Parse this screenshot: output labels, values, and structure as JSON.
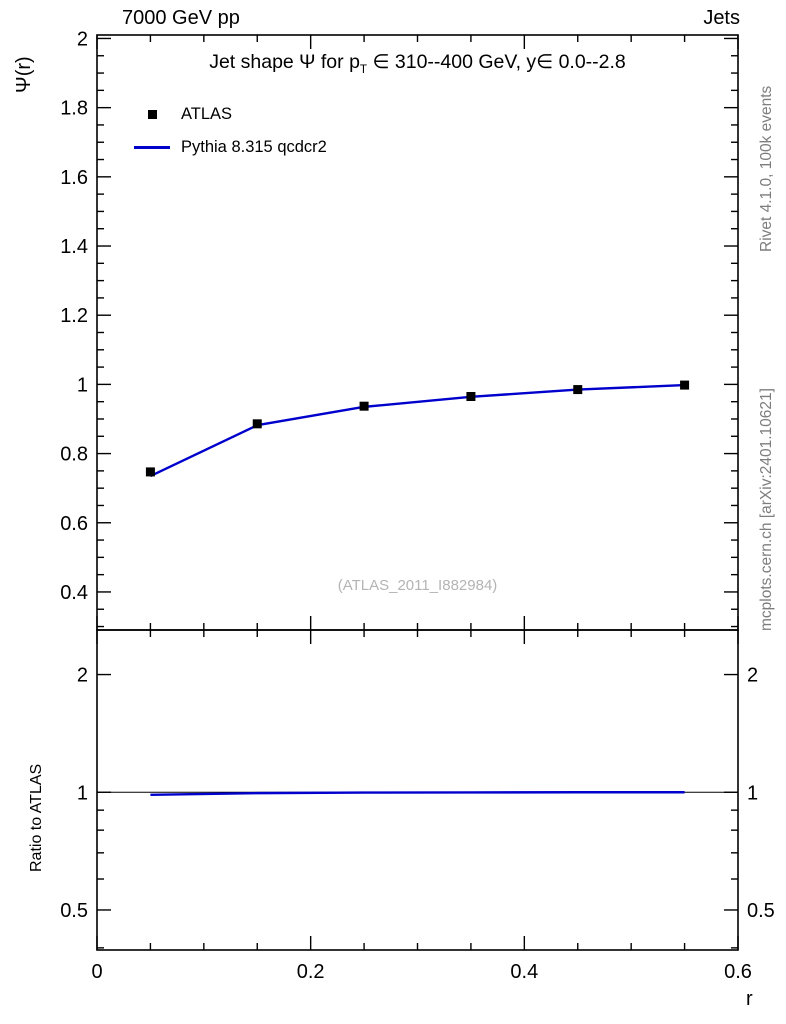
{
  "header": {
    "left": "7000 GeV pp",
    "right": "Jets"
  },
  "side_notes": {
    "top_right": "Rivet 4.1.0,  100k events",
    "bottom_right": "mcplots.cern.ch [arXiv:2401.10621]"
  },
  "watermark": "(ATLAS_2011_I882984)",
  "chart_data": {
    "type": "line",
    "title": "Jet shape Ψ for pT ∈ 310--400 GeV, y∈ 0.0--2.8",
    "title_parts": {
      "pre": "Jet shape Ψ for p",
      "sub": "T",
      "post": " ∈ 310--400 GeV, y∈ 0.0--2.8"
    },
    "xlabel": "r",
    "ylabel": "Ψ(r)",
    "xlim": [
      0,
      0.6
    ],
    "ylim": [
      0.29,
      2.01
    ],
    "xticks": [
      0,
      0.2,
      0.4,
      0.6
    ],
    "yticks": [
      0.4,
      0.6,
      0.8,
      1,
      1.2,
      1.4,
      1.6,
      1.8,
      2
    ],
    "grid": false,
    "legend_position": "top-left-inside",
    "x": [
      0.05,
      0.15,
      0.25,
      0.35,
      0.45,
      0.55
    ],
    "series": [
      {
        "name": "ATLAS",
        "type": "scatter",
        "marker": "filled-square",
        "color": "#000000",
        "values": [
          0.747,
          0.886,
          0.937,
          0.965,
          0.985,
          0.998
        ]
      },
      {
        "name": "Pythia 8.315 qcdcr2",
        "type": "line",
        "color": "#0000cc",
        "values": [
          0.735,
          0.882,
          0.935,
          0.964,
          0.985,
          0.998
        ]
      }
    ],
    "legend": [
      {
        "label": "ATLAS"
      },
      {
        "label": "Pythia 8.315 qcdcr2"
      }
    ],
    "ratio_panel": {
      "ylabel": "Ratio to ATLAS",
      "scale": "log",
      "ylim": [
        0.395,
        2.6
      ],
      "yticks": [
        0.5,
        1,
        2
      ],
      "yticks_minor": [
        0.4,
        0.6,
        0.7,
        0.8,
        0.9
      ],
      "reference": 1,
      "series": [
        {
          "name": "Pythia 8.315 qcdcr2 / ATLAS",
          "color": "#0000cc",
          "values": [
            0.985,
            0.995,
            0.998,
            0.999,
            1.0,
            1.0
          ]
        }
      ]
    }
  }
}
